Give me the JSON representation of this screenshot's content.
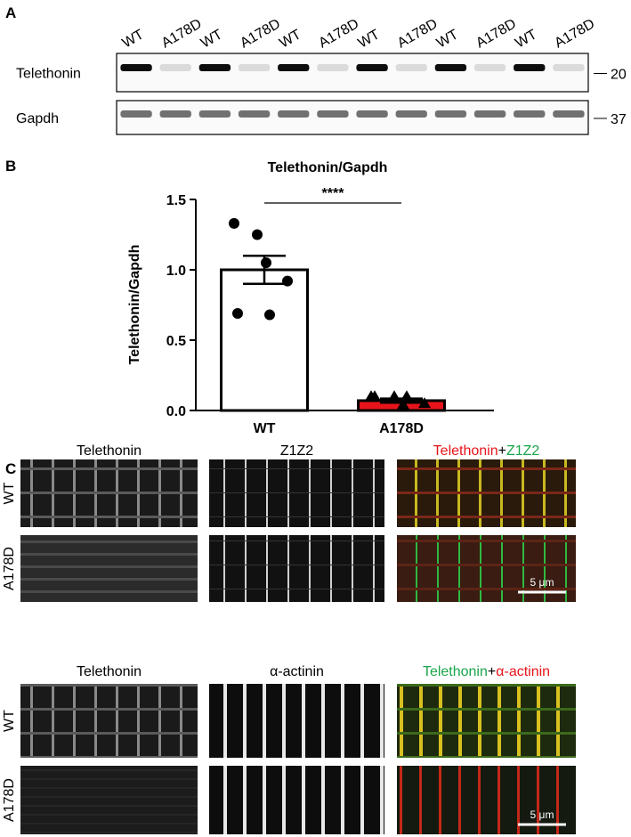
{
  "panel_a": {
    "label": "A",
    "lanes": [
      "WT",
      "A178D",
      "WT",
      "A178D",
      "WT",
      "A178D",
      "WT",
      "A178D",
      "WT",
      "A178D",
      "WT",
      "A178D"
    ],
    "rows": [
      {
        "name": "Telethonin",
        "marker": "20"
      },
      {
        "name": "Gapdh",
        "marker": "37"
      }
    ]
  },
  "chart_data": {
    "type": "bar",
    "panel_label": "B",
    "title": "Telethonin/Gapdh",
    "y_label": "Telethonin/Gapdh",
    "categories": [
      "WT",
      "A178D"
    ],
    "values": [
      1.0,
      0.07
    ],
    "errors": [
      0.1,
      0.015
    ],
    "colors": [
      "#ffffff",
      "#e8141b"
    ],
    "points": [
      [
        1.33,
        1.25,
        1.05,
        0.92,
        0.68,
        0.69
      ],
      [
        0.1,
        0.1,
        0.04,
        0.05,
        0.1,
        0.1
      ]
    ],
    "markers": [
      "circle",
      "triangle"
    ],
    "significance": "****",
    "ylim": [
      0,
      1.5
    ],
    "yticks": [
      {
        "value": 0,
        "label": "0.0"
      },
      {
        "value": 0.5,
        "label": "0.5"
      },
      {
        "value": 1,
        "label": "1.0"
      },
      {
        "value": 1.5,
        "label": "1.5"
      }
    ]
  },
  "panel_c": {
    "label": "C",
    "groups": [
      {
        "headers": [
          "Telethonin",
          "Z1Z2"
        ],
        "merge": [
          "Telethonin",
          "+",
          "Z1Z2"
        ],
        "merge_colors": [
          "#e8141b",
          "#000000",
          "#1aa64a"
        ],
        "rows": [
          "WT",
          "A178D"
        ],
        "scale_bar": "5 μm"
      },
      {
        "headers": [
          "Telethonin",
          "α-actinin"
        ],
        "merge": [
          "Telethonin",
          "+",
          "α-actinin"
        ],
        "merge_colors": [
          "#1aa64a",
          "#000000",
          "#e8141b"
        ],
        "rows": [
          "WT",
          "A178D"
        ],
        "scale_bar": "5 μm"
      }
    ]
  }
}
